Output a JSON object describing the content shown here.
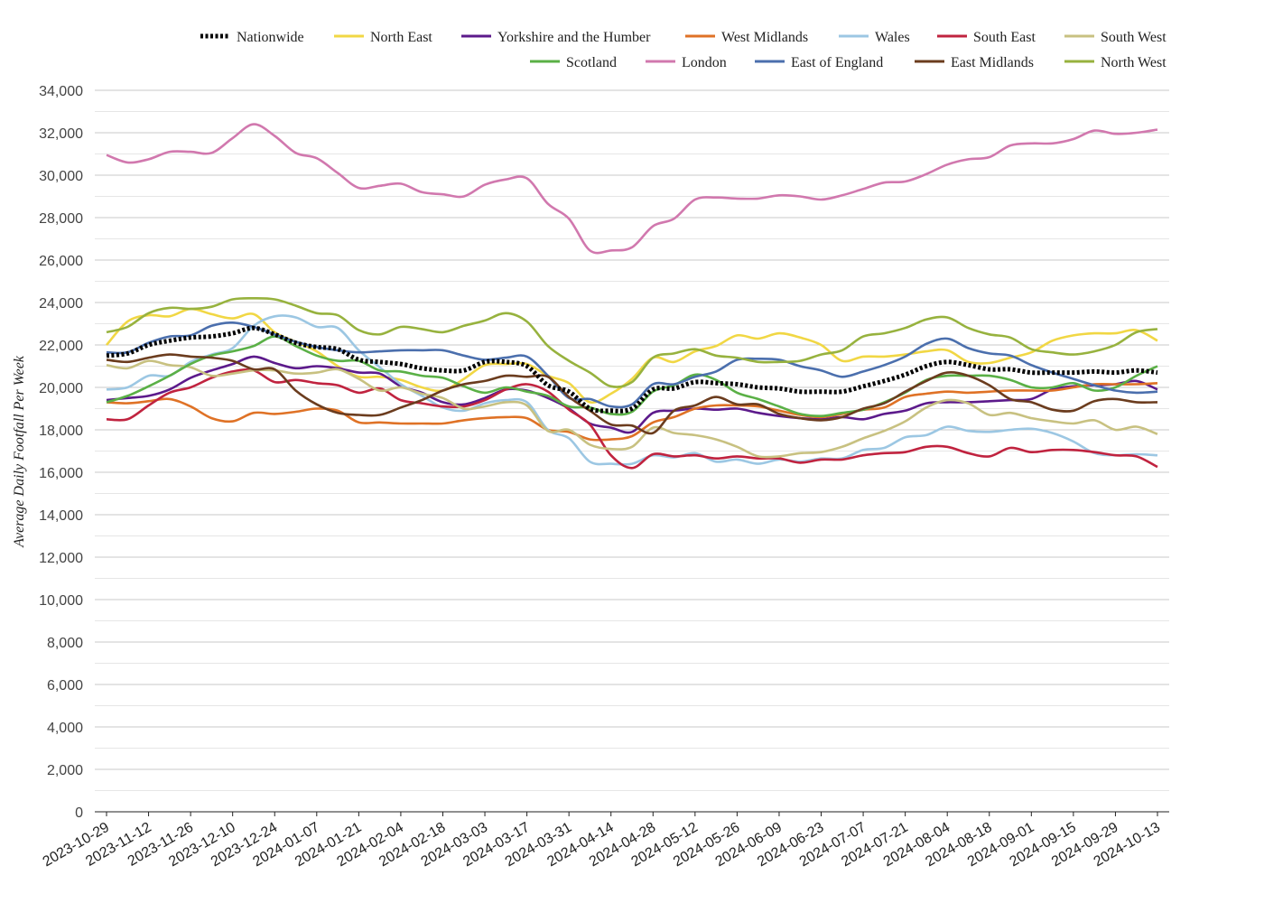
{
  "chart_data": {
    "type": "line",
    "xlabel": "",
    "ylabel": "Average Daily Footfall Per Week",
    "ylim": [
      0,
      34000
    ],
    "y_ticks": [
      "0",
      "2,000",
      "4,000",
      "6,000",
      "8,000",
      "10,000",
      "12,000",
      "14,000",
      "16,000",
      "18,000",
      "20,000",
      "22,000",
      "24,000",
      "26,000",
      "28,000",
      "30,000",
      "32,000",
      "34,000"
    ],
    "grid": true,
    "legend_position": "top",
    "x_tick_labels": [
      "2023-10-29",
      "2023-11-12",
      "2023-11-26",
      "2023-12-10",
      "2023-12-24",
      "2024-01-07",
      "2024-01-21",
      "2024-02-04",
      "2024-02-18",
      "2024-03-03",
      "2024-03-17",
      "2024-03-31",
      "2024-04-14",
      "2024-04-28",
      "2024-05-12",
      "2024-05-26",
      "2024-06-09",
      "2024-06-23",
      "2024-07-07",
      "2024-07-21",
      "2024-08-04",
      "2024-08-18",
      "2024-09-01",
      "2024-09-15",
      "2024-09-29",
      "2024-10-13"
    ],
    "x": [
      "2023-10-29",
      "2023-11-05",
      "2023-11-12",
      "2023-11-19",
      "2023-11-26",
      "2023-12-03",
      "2023-12-10",
      "2023-12-17",
      "2023-12-24",
      "2023-12-31",
      "2024-01-07",
      "2024-01-14",
      "2024-01-21",
      "2024-01-28",
      "2024-02-04",
      "2024-02-11",
      "2024-02-18",
      "2024-02-25",
      "2024-03-03",
      "2024-03-10",
      "2024-03-17",
      "2024-03-24",
      "2024-03-31",
      "2024-04-07",
      "2024-04-14",
      "2024-04-21",
      "2024-04-28",
      "2024-05-05",
      "2024-05-12",
      "2024-05-19",
      "2024-05-26",
      "2024-06-02",
      "2024-06-09",
      "2024-06-16",
      "2024-06-23",
      "2024-06-30",
      "2024-07-07",
      "2024-07-14",
      "2024-07-21",
      "2024-07-28",
      "2024-08-04",
      "2024-08-11",
      "2024-08-18",
      "2024-08-25",
      "2024-09-01",
      "2024-09-08",
      "2024-09-15",
      "2024-09-22",
      "2024-09-29",
      "2024-10-06",
      "2024-10-13"
    ],
    "series": [
      {
        "name": "Nationwide",
        "color": "#000000",
        "dashed": true,
        "values": [
          21500,
          21600,
          22000,
          22200,
          22350,
          22400,
          22550,
          22800,
          22500,
          22100,
          21900,
          21800,
          21300,
          21200,
          21100,
          20900,
          20800,
          20800,
          21200,
          21200,
          21000,
          20100,
          19800,
          19000,
          18900,
          19000,
          19900,
          19950,
          20250,
          20200,
          20150,
          20000,
          19950,
          19800,
          19800,
          19800,
          20050,
          20300,
          20600,
          21000,
          21200,
          21050,
          20850,
          20850,
          20700,
          20700,
          20700,
          20750,
          20700,
          20800,
          20700
        ]
      },
      {
        "name": "North East",
        "color": "#f1d744",
        "values": [
          22000,
          23100,
          23400,
          23350,
          23700,
          23450,
          23250,
          23450,
          22600,
          22150,
          21700,
          21000,
          20500,
          20500,
          20350,
          20000,
          19850,
          20400,
          21050,
          21100,
          21100,
          20550,
          20200,
          19300,
          19700,
          20400,
          21400,
          21200,
          21700,
          21950,
          22450,
          22300,
          22550,
          22350,
          22000,
          21250,
          21450,
          21450,
          21550,
          21700,
          21750,
          21200,
          21150,
          21400,
          21650,
          22200,
          22450,
          22550,
          22550,
          22700,
          22200
        ]
      },
      {
        "name": "Yorkshire and the Humber",
        "color": "#5c1a8b",
        "values": [
          19400,
          19500,
          19600,
          19900,
          20450,
          20800,
          21100,
          21450,
          21150,
          20900,
          21000,
          20900,
          20700,
          20650,
          20050,
          19750,
          19300,
          19200,
          19500,
          19900,
          19850,
          19500,
          19000,
          18300,
          18100,
          17900,
          18800,
          18900,
          19000,
          18950,
          19000,
          18800,
          18650,
          18550,
          18500,
          18600,
          18500,
          18750,
          18900,
          19250,
          19300,
          19300,
          19350,
          19400,
          19450,
          19900,
          20050,
          20100,
          20150,
          20300,
          19900
        ]
      },
      {
        "name": "West Midlands",
        "color": "#df7226",
        "values": [
          19300,
          19250,
          19350,
          19450,
          19100,
          18550,
          18400,
          18800,
          18750,
          18850,
          19000,
          18900,
          18350,
          18350,
          18300,
          18300,
          18300,
          18450,
          18550,
          18600,
          18550,
          18000,
          17900,
          17550,
          17550,
          17700,
          18350,
          18600,
          19000,
          19150,
          19150,
          19100,
          18900,
          18700,
          18600,
          18750,
          18950,
          19050,
          19550,
          19700,
          19800,
          19750,
          19800,
          19850,
          19850,
          19850,
          20000,
          20150,
          20150,
          20150,
          20200
        ]
      },
      {
        "name": "Wales",
        "color": "#9cc7e3",
        "values": [
          19900,
          20000,
          20550,
          20550,
          21200,
          21550,
          21850,
          22900,
          23350,
          23300,
          22850,
          22800,
          21750,
          20950,
          20150,
          19600,
          19050,
          18900,
          19250,
          19400,
          19300,
          18000,
          17600,
          16500,
          16400,
          16400,
          16800,
          16700,
          16900,
          16500,
          16600,
          16400,
          16600,
          16500,
          16650,
          16650,
          17050,
          17150,
          17650,
          17750,
          18150,
          17950,
          17900,
          18000,
          18050,
          17850,
          17450,
          16900,
          16800,
          16850,
          16800
        ]
      },
      {
        "name": "South East",
        "color": "#c0233f",
        "values": [
          18500,
          18500,
          19150,
          19750,
          20000,
          20450,
          20750,
          20800,
          20250,
          20350,
          20200,
          20100,
          19750,
          19950,
          19400,
          19250,
          19100,
          19100,
          19400,
          19900,
          20150,
          19800,
          18950,
          18250,
          16800,
          16200,
          16850,
          16750,
          16800,
          16650,
          16750,
          16650,
          16650,
          16450,
          16600,
          16600,
          16800,
          16900,
          16950,
          17200,
          17200,
          16900,
          16750,
          17150,
          16950,
          17050,
          17050,
          16950,
          16800,
          16750,
          16250
        ]
      },
      {
        "name": "South West",
        "color": "#c8c181",
        "values": [
          21050,
          20900,
          21250,
          21050,
          20950,
          20550,
          20650,
          20800,
          20800,
          20650,
          20700,
          20850,
          20400,
          19850,
          20000,
          19700,
          19500,
          19000,
          19100,
          19300,
          19150,
          17950,
          18000,
          17300,
          17100,
          17200,
          18100,
          17850,
          17750,
          17550,
          17200,
          16750,
          16750,
          16900,
          16950,
          17200,
          17600,
          17950,
          18400,
          19050,
          19400,
          19250,
          18700,
          18800,
          18550,
          18400,
          18300,
          18450,
          18000,
          18150,
          17800
        ]
      },
      {
        "name": "Scotland",
        "color": "#5ab046",
        "values": [
          19300,
          19600,
          20050,
          20550,
          21100,
          21500,
          21700,
          21950,
          22400,
          21950,
          21500,
          21250,
          21250,
          20800,
          20750,
          20550,
          20450,
          20050,
          19750,
          20000,
          19800,
          19600,
          19100,
          19050,
          18750,
          18850,
          19800,
          20100,
          20600,
          20350,
          19750,
          19450,
          19100,
          18750,
          18650,
          18800,
          18950,
          19300,
          19750,
          20350,
          20550,
          20550,
          20550,
          20350,
          20000,
          20000,
          20200,
          19850,
          20000,
          20550,
          21000
        ]
      },
      {
        "name": "London",
        "color": "#d178ae",
        "values": [
          30950,
          30600,
          30750,
          31100,
          31100,
          31050,
          31750,
          32400,
          31850,
          31050,
          30800,
          30100,
          29400,
          29500,
          29600,
          29200,
          29100,
          29000,
          29550,
          29800,
          29850,
          28650,
          27950,
          26450,
          26450,
          26600,
          27600,
          27950,
          28850,
          28950,
          28900,
          28900,
          29050,
          29000,
          28850,
          29050,
          29350,
          29650,
          29700,
          30050,
          30500,
          30750,
          30850,
          31400,
          31500,
          31500,
          31700,
          32100,
          31950,
          32000,
          32150
        ]
      },
      {
        "name": "East of England",
        "color": "#4b6fad",
        "values": [
          21650,
          21650,
          22100,
          22400,
          22450,
          22900,
          23050,
          22850,
          22500,
          22150,
          21900,
          21750,
          21650,
          21700,
          21750,
          21750,
          21750,
          21500,
          21300,
          21400,
          21450,
          20550,
          19500,
          19450,
          19100,
          19200,
          20150,
          20150,
          20500,
          20750,
          21300,
          21350,
          21300,
          21000,
          20800,
          20500,
          20750,
          21050,
          21450,
          22050,
          22300,
          21850,
          21600,
          21500,
          21050,
          20700,
          20400,
          20100,
          19850,
          19750,
          19800
        ]
      },
      {
        "name": "East Midlands",
        "color": "#6b3c1e",
        "values": [
          21300,
          21200,
          21400,
          21550,
          21450,
          21400,
          21250,
          20850,
          20850,
          19850,
          19200,
          18800,
          18700,
          18700,
          19050,
          19400,
          19850,
          20150,
          20300,
          20550,
          20500,
          20500,
          19550,
          18900,
          18250,
          18200,
          17850,
          18900,
          19150,
          19550,
          19200,
          19200,
          18750,
          18550,
          18450,
          18600,
          19000,
          19250,
          19800,
          20300,
          20700,
          20550,
          20100,
          19450,
          19300,
          18950,
          18900,
          19350,
          19450,
          19300,
          19300
        ]
      },
      {
        "name": "North West",
        "color": "#97b23e",
        "values": [
          22600,
          22850,
          23500,
          23750,
          23700,
          23800,
          24150,
          24200,
          24150,
          23850,
          23500,
          23400,
          22700,
          22500,
          22850,
          22750,
          22600,
          22900,
          23150,
          23500,
          23100,
          21950,
          21250,
          20700,
          20050,
          20250,
          21400,
          21600,
          21800,
          21500,
          21400,
          21200,
          21200,
          21250,
          21550,
          21750,
          22400,
          22550,
          22800,
          23200,
          23300,
          22800,
          22500,
          22350,
          21800,
          21650,
          21550,
          21700,
          22000,
          22600,
          22750
        ]
      }
    ]
  }
}
